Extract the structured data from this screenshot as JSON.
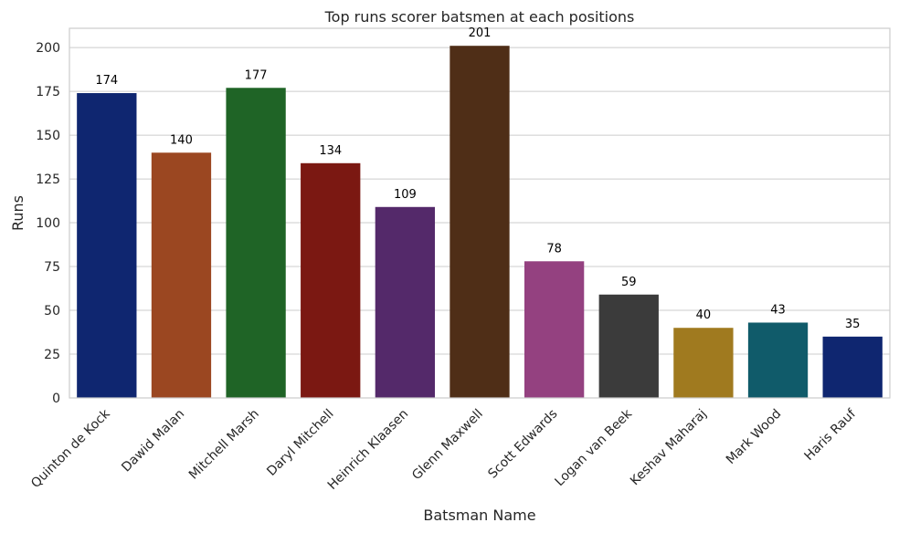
{
  "chart_data": {
    "type": "bar",
    "title": "Top runs scorer batsmen at each positions",
    "xlabel": "Batsman Name",
    "ylabel": "Runs",
    "categories": [
      "Quinton de Kock",
      "Dawid Malan",
      "Mitchell Marsh",
      "Daryl Mitchell",
      "Heinrich Klaasen",
      "Glenn Maxwell",
      "Scott Edwards",
      "Logan van Beek",
      "Keshav Maharaj",
      "Mark Wood",
      "Haris Rauf"
    ],
    "values": [
      174,
      140,
      177,
      134,
      109,
      201,
      78,
      59,
      40,
      43,
      35
    ],
    "colors": [
      "#0f2670",
      "#9b4721",
      "#1f6426",
      "#7b1812",
      "#54296a",
      "#4f2e17",
      "#944180",
      "#3b3b3b",
      "#a07a1f",
      "#105b6a",
      "#0f2670"
    ],
    "ylim": [
      0,
      211
    ],
    "yticks": [
      0,
      25,
      50,
      75,
      100,
      125,
      150,
      175,
      200
    ],
    "grid": true
  }
}
